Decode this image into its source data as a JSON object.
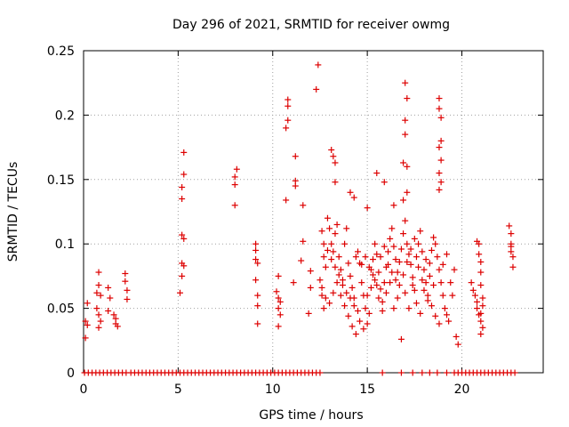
{
  "chart_data": {
    "type": "scatter",
    "title": "Day 296 of 2021, SRMTID for receiver owmg",
    "xlabel": "GPS time / hours",
    "ylabel": "SRMTID / TECUs",
    "xlim": [
      0,
      24.3
    ],
    "ylim": [
      0,
      0.25
    ],
    "x_ticks": [
      0,
      5,
      10,
      15,
      20
    ],
    "x_tick_labels": [
      "0",
      "5",
      "10",
      "15",
      "20"
    ],
    "y_ticks": [
      0,
      0.05,
      0.1,
      0.15,
      0.2,
      0.25
    ],
    "y_tick_labels": [
      "0",
      "0.05",
      "0.1",
      "0.15",
      "0.2",
      "0.25"
    ],
    "grid": true,
    "marker": "+",
    "series": [
      {
        "name": "SRMTID",
        "color": "#dd0000",
        "points": [
          [
            0.1,
            0.04
          ],
          [
            0.1,
            0.027
          ],
          [
            0.2,
            0.054
          ],
          [
            0.2,
            0.037
          ],
          [
            0.7,
            0.05
          ],
          [
            0.7,
            0.062
          ],
          [
            0.8,
            0.078
          ],
          [
            0.8,
            0.068
          ],
          [
            0.8,
            0.045
          ],
          [
            0.8,
            0.035
          ],
          [
            0.9,
            0.06
          ],
          [
            0.9,
            0.04
          ],
          [
            1.3,
            0.066
          ],
          [
            1.3,
            0.048
          ],
          [
            1.4,
            0.058
          ],
          [
            1.6,
            0.045
          ],
          [
            1.7,
            0.042
          ],
          [
            1.7,
            0.038
          ],
          [
            1.8,
            0.036
          ],
          [
            2.2,
            0.077
          ],
          [
            2.2,
            0.071
          ],
          [
            2.3,
            0.064
          ],
          [
            2.3,
            0.057
          ],
          [
            5.1,
            0.062
          ],
          [
            5.2,
            0.085
          ],
          [
            5.2,
            0.107
          ],
          [
            5.2,
            0.135
          ],
          [
            5.2,
            0.144
          ],
          [
            5.3,
            0.154
          ],
          [
            5.3,
            0.171
          ],
          [
            5.3,
            0.104
          ],
          [
            5.3,
            0.083
          ],
          [
            5.2,
            0.075
          ],
          [
            8.0,
            0.13
          ],
          [
            8.0,
            0.146
          ],
          [
            8.0,
            0.152
          ],
          [
            8.1,
            0.158
          ],
          [
            9.1,
            0.1
          ],
          [
            9.1,
            0.095
          ],
          [
            9.1,
            0.088
          ],
          [
            9.1,
            0.072
          ],
          [
            9.2,
            0.06
          ],
          [
            9.2,
            0.052
          ],
          [
            9.2,
            0.038
          ],
          [
            9.2,
            0.085
          ],
          [
            10.2,
            0.063
          ],
          [
            10.3,
            0.058
          ],
          [
            10.3,
            0.05
          ],
          [
            10.3,
            0.036
          ],
          [
            10.4,
            0.045
          ],
          [
            10.3,
            0.075
          ],
          [
            10.4,
            0.055
          ],
          [
            10.7,
            0.134
          ],
          [
            10.7,
            0.19
          ],
          [
            10.8,
            0.196
          ],
          [
            10.8,
            0.207
          ],
          [
            10.8,
            0.212
          ],
          [
            11.1,
            0.07
          ],
          [
            11.2,
            0.149
          ],
          [
            11.2,
            0.168
          ],
          [
            11.2,
            0.145
          ],
          [
            11.5,
            0.087
          ],
          [
            11.6,
            0.102
          ],
          [
            11.6,
            0.13
          ],
          [
            12.0,
            0.079
          ],
          [
            12.0,
            0.066
          ],
          [
            11.9,
            0.046
          ],
          [
            12.3,
            0.22
          ],
          [
            12.4,
            0.239
          ],
          [
            17.0,
            0.225
          ],
          [
            17.1,
            0.213
          ],
          [
            17.0,
            0.196
          ],
          [
            17.0,
            0.185
          ],
          [
            16.9,
            0.163
          ],
          [
            17.1,
            0.16
          ],
          [
            17.1,
            0.14
          ],
          [
            16.9,
            0.134
          ],
          [
            18.8,
            0.213
          ],
          [
            18.8,
            0.205
          ],
          [
            18.9,
            0.198
          ],
          [
            18.9,
            0.18
          ],
          [
            18.8,
            0.175
          ],
          [
            18.9,
            0.165
          ],
          [
            18.8,
            0.155
          ],
          [
            18.9,
            0.148
          ],
          [
            18.8,
            0.142
          ],
          [
            15.5,
            0.155
          ],
          [
            15.9,
            0.148
          ],
          [
            13.1,
            0.173
          ],
          [
            13.2,
            0.168
          ],
          [
            13.3,
            0.163
          ],
          [
            13.3,
            0.148
          ],
          [
            14.1,
            0.14
          ],
          [
            14.3,
            0.136
          ],
          [
            15.0,
            0.128
          ],
          [
            16.4,
            0.13
          ],
          [
            12.6,
            0.11
          ],
          [
            12.7,
            0.09
          ],
          [
            12.8,
            0.082
          ],
          [
            12.6,
            0.06
          ],
          [
            12.7,
            0.05
          ],
          [
            12.9,
            0.12
          ],
          [
            13.0,
            0.112
          ],
          [
            13.1,
            0.1
          ],
          [
            13.2,
            0.094
          ],
          [
            13.3,
            0.108
          ],
          [
            13.4,
            0.115
          ],
          [
            13.5,
            0.09
          ],
          [
            13.6,
            0.08
          ],
          [
            13.7,
            0.072
          ],
          [
            13.8,
            0.1
          ],
          [
            13.9,
            0.112
          ],
          [
            14.0,
            0.085
          ],
          [
            14.1,
            0.075
          ],
          [
            14.2,
            0.066
          ],
          [
            14.3,
            0.058
          ],
          [
            14.4,
            0.09
          ],
          [
            14.5,
            0.094
          ],
          [
            14.6,
            0.085
          ],
          [
            14.7,
            0.07
          ],
          [
            14.8,
            0.06
          ],
          [
            14.9,
            0.05
          ],
          [
            15.0,
            0.038
          ],
          [
            15.1,
            0.046
          ],
          [
            15.2,
            0.08
          ],
          [
            15.3,
            0.088
          ],
          [
            15.4,
            0.1
          ],
          [
            15.5,
            0.092
          ],
          [
            15.6,
            0.078
          ],
          [
            15.7,
            0.065
          ],
          [
            15.8,
            0.055
          ],
          [
            15.9,
            0.07
          ],
          [
            16.0,
            0.082
          ],
          [
            16.1,
            0.094
          ],
          [
            16.2,
            0.104
          ],
          [
            16.3,
            0.112
          ],
          [
            16.4,
            0.098
          ],
          [
            16.5,
            0.088
          ],
          [
            16.6,
            0.078
          ],
          [
            16.7,
            0.068
          ],
          [
            16.8,
            0.096
          ],
          [
            16.9,
            0.108
          ],
          [
            17.0,
            0.118
          ],
          [
            17.1,
            0.1
          ],
          [
            17.2,
            0.092
          ],
          [
            17.3,
            0.084
          ],
          [
            17.4,
            0.074
          ],
          [
            17.5,
            0.064
          ],
          [
            17.6,
            0.09
          ],
          [
            17.7,
            0.1
          ],
          [
            17.8,
            0.11
          ],
          [
            17.9,
            0.094
          ],
          [
            18.0,
            0.08
          ],
          [
            18.1,
            0.07
          ],
          [
            18.2,
            0.06
          ],
          [
            18.3,
            0.085
          ],
          [
            18.4,
            0.095
          ],
          [
            18.5,
            0.105
          ],
          [
            18.6,
            0.1
          ],
          [
            18.7,
            0.09
          ],
          [
            18.8,
            0.08
          ],
          [
            18.9,
            0.07
          ],
          [
            19.0,
            0.06
          ],
          [
            19.1,
            0.05
          ],
          [
            19.2,
            0.045
          ],
          [
            19.3,
            0.04
          ],
          [
            12.5,
            0.072
          ],
          [
            12.6,
            0.066
          ],
          [
            12.8,
            0.058
          ],
          [
            13.0,
            0.054
          ],
          [
            13.2,
            0.062
          ],
          [
            13.4,
            0.07
          ],
          [
            13.6,
            0.06
          ],
          [
            13.8,
            0.052
          ],
          [
            14.0,
            0.044
          ],
          [
            14.2,
            0.036
          ],
          [
            14.4,
            0.03
          ],
          [
            14.6,
            0.04
          ],
          [
            14.8,
            0.034
          ],
          [
            15.0,
            0.06
          ],
          [
            15.2,
            0.066
          ],
          [
            15.4,
            0.072
          ],
          [
            15.6,
            0.058
          ],
          [
            15.8,
            0.048
          ],
          [
            16.0,
            0.062
          ],
          [
            16.2,
            0.07
          ],
          [
            16.4,
            0.05
          ],
          [
            16.6,
            0.058
          ],
          [
            16.8,
            0.026
          ],
          [
            17.0,
            0.062
          ],
          [
            17.2,
            0.05
          ],
          [
            17.4,
            0.068
          ],
          [
            17.6,
            0.054
          ],
          [
            17.8,
            0.046
          ],
          [
            18.0,
            0.064
          ],
          [
            18.2,
            0.056
          ],
          [
            18.4,
            0.052
          ],
          [
            18.6,
            0.044
          ],
          [
            18.8,
            0.038
          ],
          [
            19.0,
            0.084
          ],
          [
            19.2,
            0.092
          ],
          [
            12.7,
            0.1
          ],
          [
            12.9,
            0.095
          ],
          [
            13.1,
            0.088
          ],
          [
            13.3,
            0.082
          ],
          [
            13.5,
            0.076
          ],
          [
            13.7,
            0.068
          ],
          [
            13.9,
            0.062
          ],
          [
            14.1,
            0.058
          ],
          [
            14.3,
            0.052
          ],
          [
            14.5,
            0.048
          ],
          [
            14.7,
            0.084
          ],
          [
            14.9,
            0.09
          ],
          [
            15.1,
            0.082
          ],
          [
            15.3,
            0.076
          ],
          [
            15.5,
            0.068
          ],
          [
            15.7,
            0.09
          ],
          [
            15.9,
            0.098
          ],
          [
            16.1,
            0.084
          ],
          [
            16.3,
            0.078
          ],
          [
            16.5,
            0.072
          ],
          [
            16.7,
            0.086
          ],
          [
            16.9,
            0.076
          ],
          [
            17.1,
            0.086
          ],
          [
            17.3,
            0.096
          ],
          [
            17.5,
            0.104
          ],
          [
            17.7,
            0.082
          ],
          [
            17.9,
            0.072
          ],
          [
            18.1,
            0.088
          ],
          [
            18.3,
            0.075
          ],
          [
            18.5,
            0.068
          ],
          [
            19.4,
            0.07
          ],
          [
            19.5,
            0.06
          ],
          [
            19.6,
            0.08
          ],
          [
            19.7,
            0.028
          ],
          [
            19.8,
            0.022
          ],
          [
            20.5,
            0.07
          ],
          [
            20.6,
            0.064
          ],
          [
            20.7,
            0.06
          ],
          [
            20.8,
            0.055
          ],
          [
            20.8,
            0.05
          ],
          [
            20.9,
            0.1
          ],
          [
            20.9,
            0.092
          ],
          [
            21.0,
            0.086
          ],
          [
            21.0,
            0.078
          ],
          [
            21.0,
            0.046
          ],
          [
            21.0,
            0.04
          ],
          [
            21.1,
            0.035
          ],
          [
            21.0,
            0.03
          ],
          [
            21.1,
            0.052
          ],
          [
            21.1,
            0.058
          ],
          [
            20.9,
            0.045
          ],
          [
            21.0,
            0.068
          ],
          [
            20.8,
            0.102
          ],
          [
            22.5,
            0.114
          ],
          [
            22.6,
            0.108
          ],
          [
            22.6,
            0.1
          ],
          [
            22.6,
            0.094
          ],
          [
            22.7,
            0.09
          ],
          [
            22.7,
            0.082
          ],
          [
            22.6,
            0.098
          ]
        ],
        "zero_points_x": [
          0.05,
          0.25,
          0.45,
          0.65,
          0.85,
          1.05,
          1.25,
          1.45,
          1.65,
          1.85,
          2.05,
          2.25,
          2.5,
          2.7,
          2.9,
          3.1,
          3.3,
          3.5,
          3.7,
          3.9,
          4.1,
          4.3,
          4.5,
          4.7,
          4.9,
          5.1,
          5.3,
          5.5,
          5.7,
          5.9,
          6.1,
          6.3,
          6.5,
          6.7,
          6.9,
          7.1,
          7.3,
          7.5,
          7.7,
          7.9,
          8.1,
          8.3,
          8.5,
          8.7,
          8.9,
          9.1,
          9.3,
          9.5,
          9.7,
          9.9,
          10.1,
          10.3,
          10.5,
          10.7,
          10.9,
          11.1,
          11.3,
          11.5,
          11.7,
          11.9,
          12.1,
          12.3,
          12.5,
          15.8,
          16.8,
          17.4,
          17.9,
          18.3,
          18.7,
          19.2,
          19.6,
          19.8,
          20.0,
          20.2,
          20.4,
          20.6,
          20.8,
          21.0,
          21.2,
          21.4,
          21.6,
          21.8,
          22.0,
          22.2,
          22.4,
          22.6,
          22.8
        ]
      }
    ]
  }
}
